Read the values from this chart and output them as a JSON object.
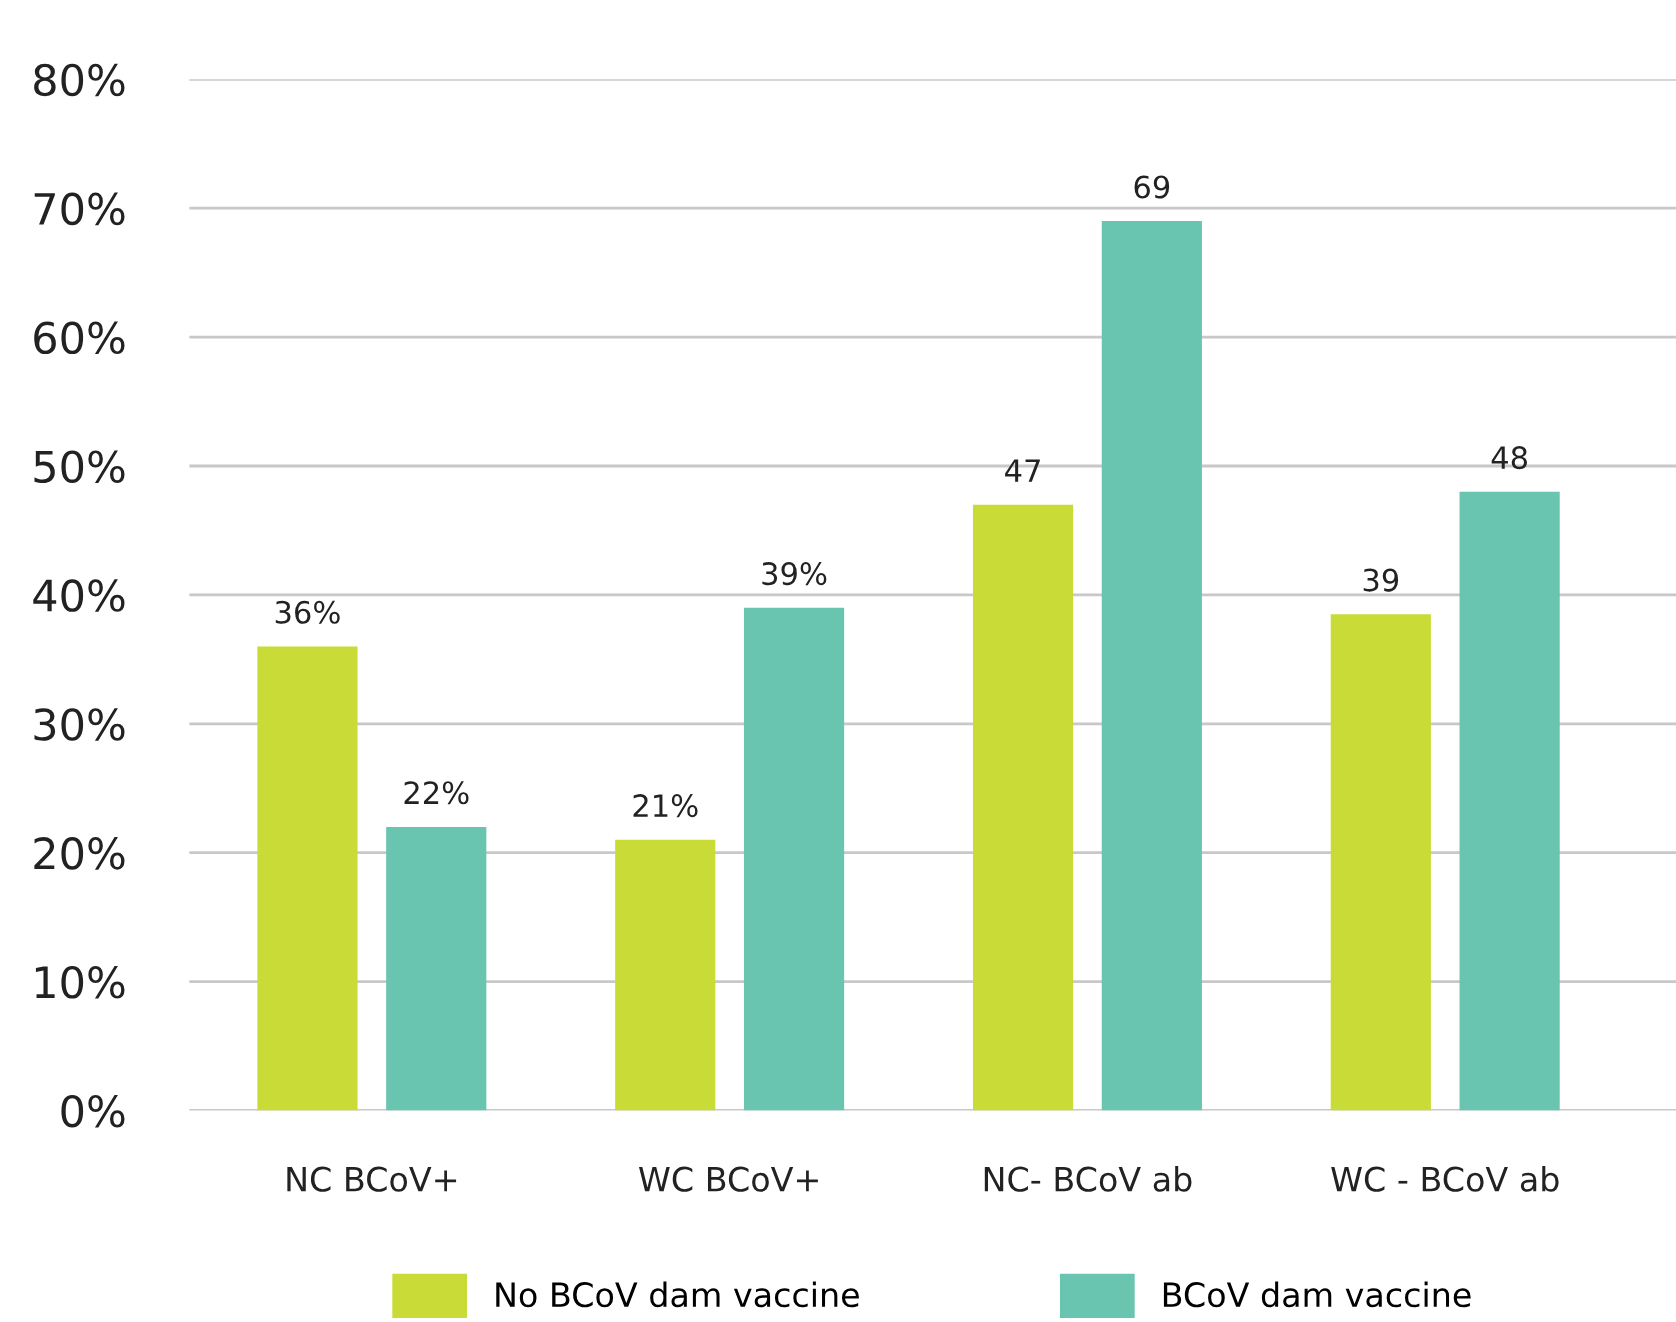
{
  "chart_data": {
    "type": "bar",
    "categories": [
      "NC BCoV+",
      "WC BCoV+",
      "NC- BCoV ab",
      "WC - BCoV ab"
    ],
    "series": [
      {
        "name": "No BCoV dam vaccine",
        "color": "#c9db37",
        "values": [
          36,
          21,
          47,
          38.5
        ],
        "value_labels": [
          "36%",
          "21%",
          "47",
          "39"
        ]
      },
      {
        "name": "BCoV dam vaccine",
        "color": "#69c5af",
        "values": [
          22,
          39,
          69,
          48
        ],
        "value_labels": [
          "22%",
          "39%",
          "69",
          "48"
        ]
      }
    ],
    "ylim": [
      0,
      80
    ],
    "yticks": [
      {
        "value": 0,
        "label": "0%"
      },
      {
        "value": 10,
        "label": "10%"
      },
      {
        "value": 20,
        "label": "20%"
      },
      {
        "value": 30,
        "label": "30%"
      },
      {
        "value": 40,
        "label": "40%"
      },
      {
        "value": 50,
        "label": "50%"
      },
      {
        "value": 60,
        "label": "60%"
      },
      {
        "value": 70,
        "label": "70%"
      },
      {
        "value": 80,
        "label": "80%"
      }
    ],
    "grid": "y",
    "legend": "bottom"
  }
}
